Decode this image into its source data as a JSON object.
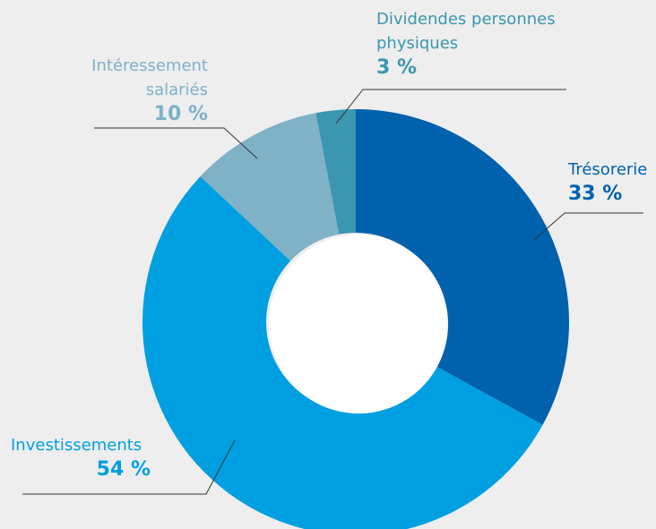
{
  "chart_data": {
    "type": "donut",
    "categories": [
      "Trésorerie",
      "Investissements",
      "Intéressement salariés",
      "Dividendes personnes physiques"
    ],
    "values": [
      33,
      54,
      10,
      3
    ],
    "value_labels": [
      "33 %",
      "54 %",
      "10 %",
      "3 %"
    ],
    "colors": [
      "#0061ad",
      "#009fe1",
      "#7fb1c7",
      "#3a96b1"
    ]
  }
}
